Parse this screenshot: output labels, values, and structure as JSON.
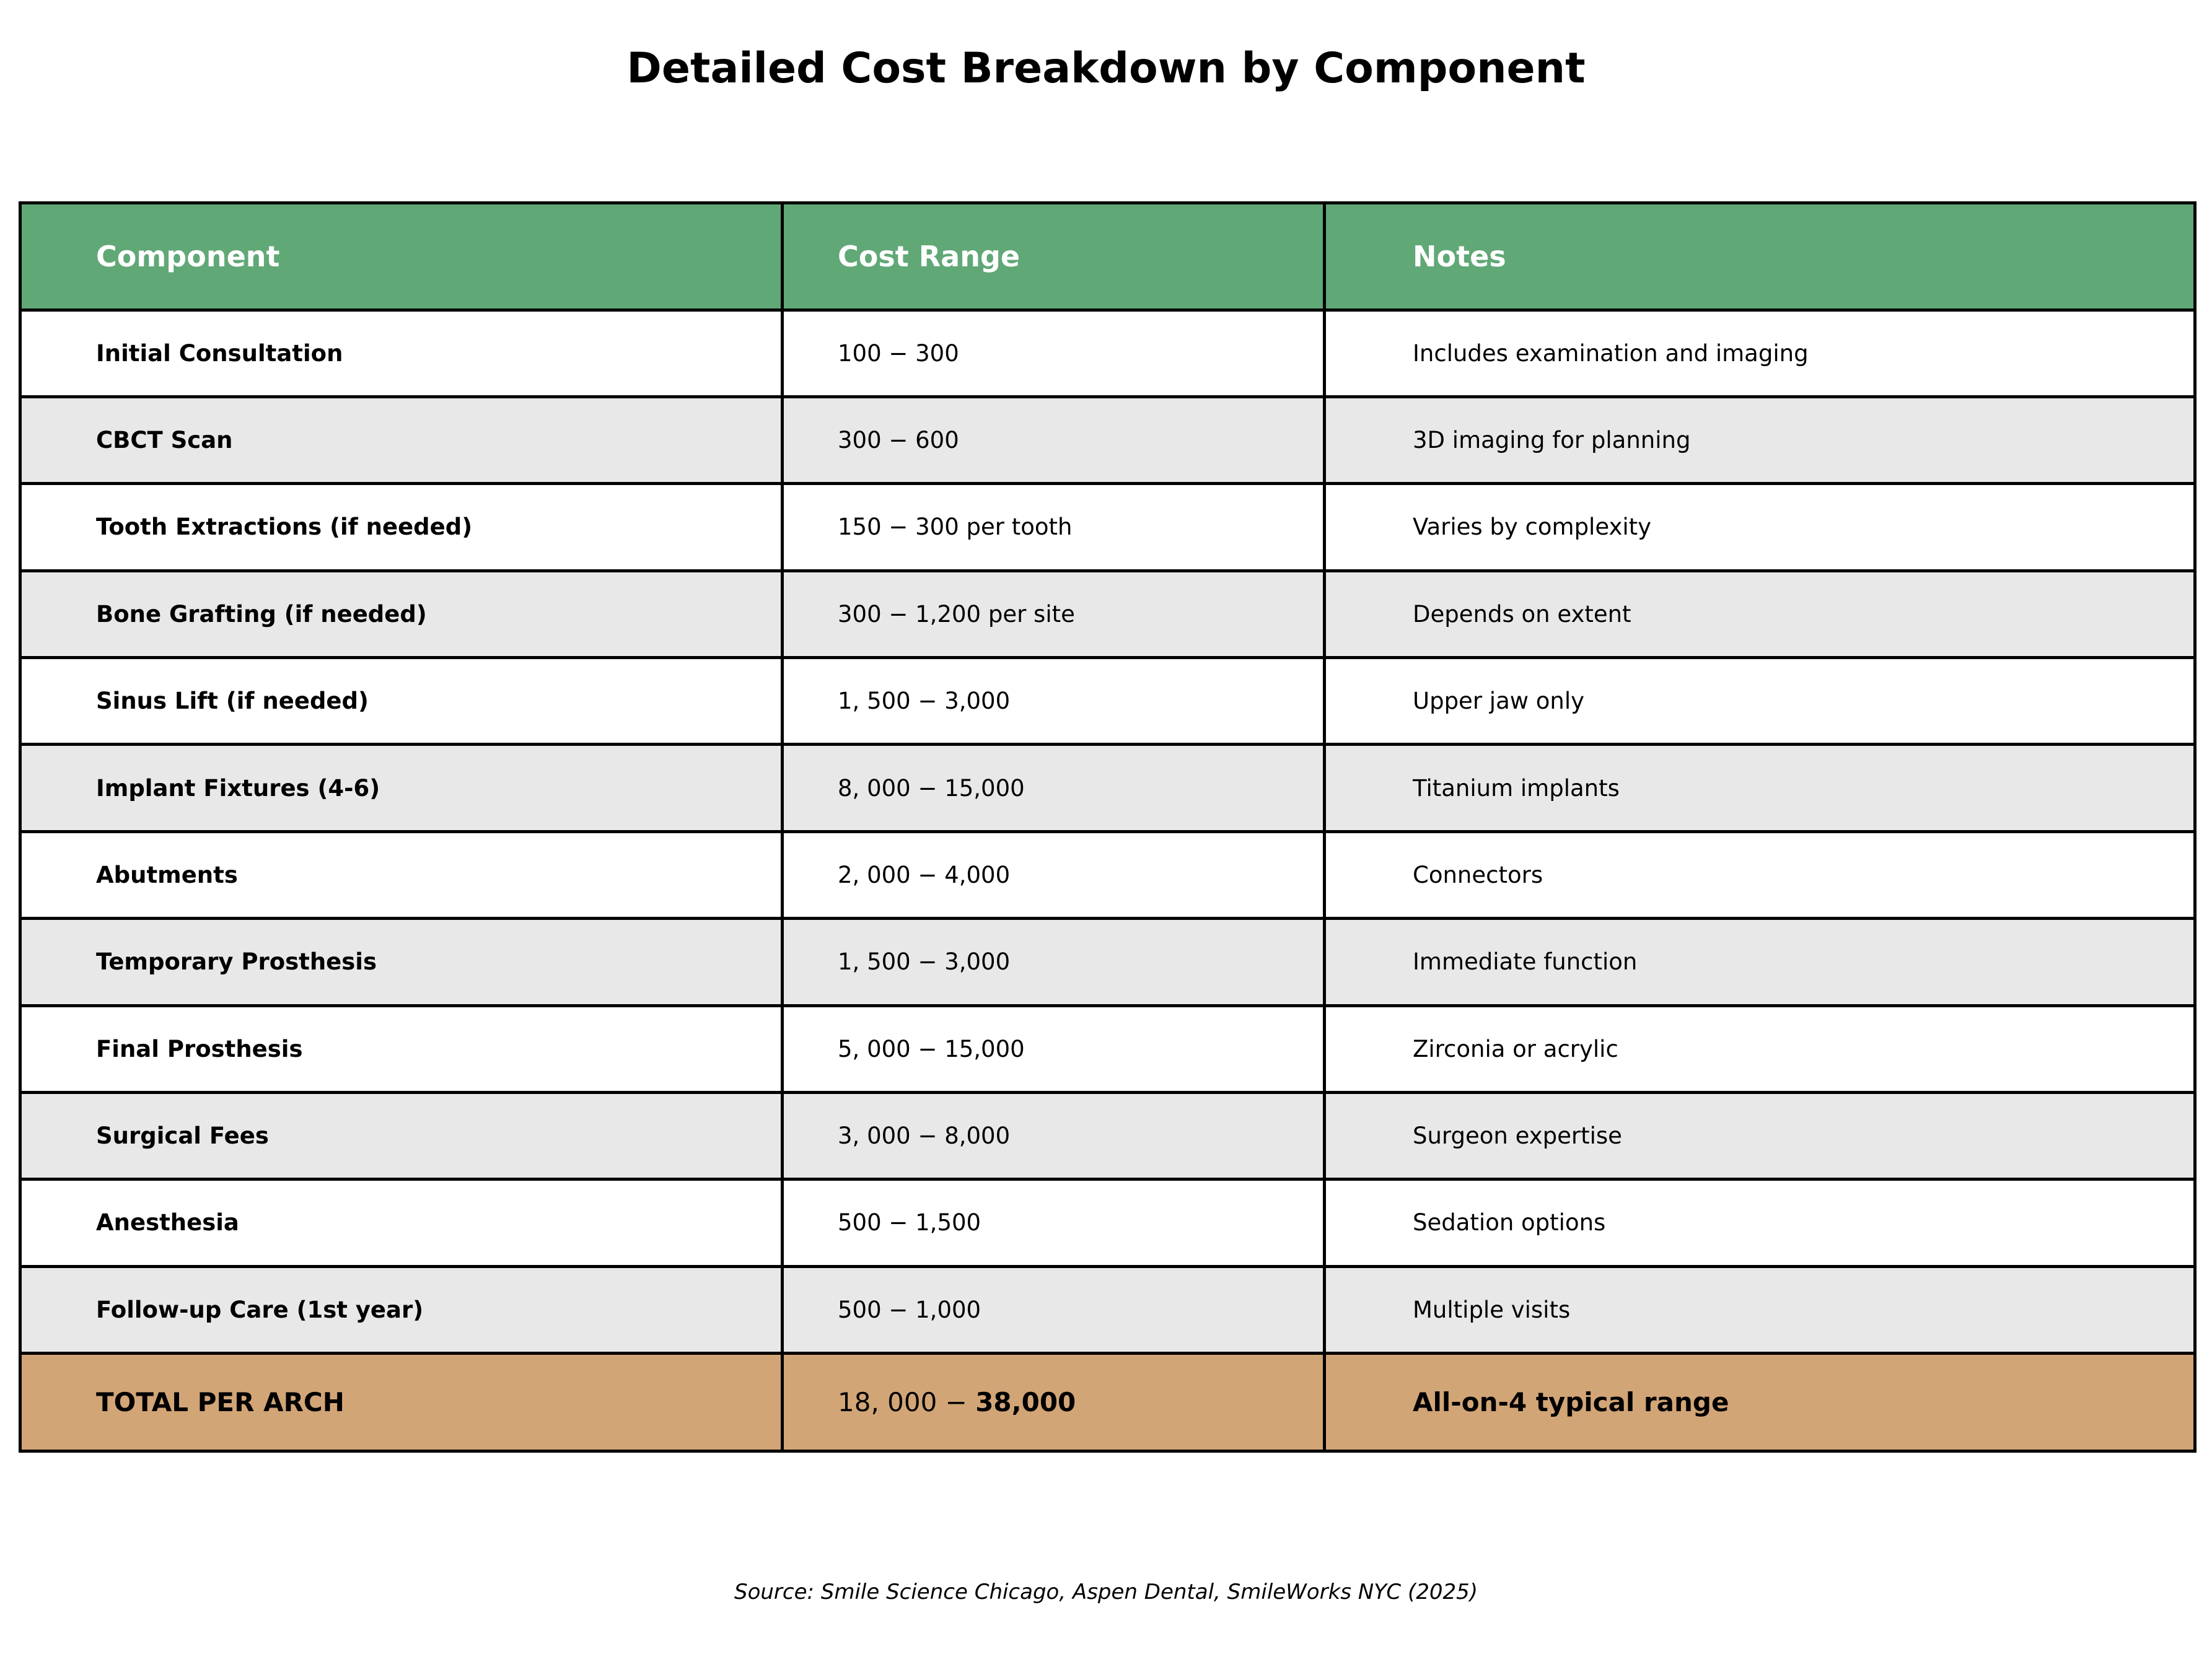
{
  "chart_data": {
    "type": "table",
    "title": "Detailed Cost Breakdown by Component",
    "columns": [
      "Component",
      "Cost Range",
      "Notes"
    ],
    "rows": [
      {
        "component": "Initial Consultation",
        "cost_range": "100 − 300",
        "notes": "Includes examination and imaging"
      },
      {
        "component": "CBCT Scan",
        "cost_range": "300 − 600",
        "notes": "3D imaging for planning"
      },
      {
        "component": "Tooth Extractions (if needed)",
        "cost_range": "150 − 300 per tooth",
        "notes": "Varies by complexity"
      },
      {
        "component": "Bone Grafting (if needed)",
        "cost_range": "300 − 1,200 per site",
        "notes": "Depends on extent"
      },
      {
        "component": "Sinus Lift (if needed)",
        "cost_range": "1, 500 − 3,000",
        "notes": "Upper jaw only"
      },
      {
        "component": "Implant Fixtures (4-6)",
        "cost_range": "8, 000 − 15,000",
        "notes": "Titanium implants"
      },
      {
        "component": "Abutments",
        "cost_range": "2, 000 − 4,000",
        "notes": "Connectors"
      },
      {
        "component": "Temporary Prosthesis",
        "cost_range": "1, 500 − 3,000",
        "notes": "Immediate function"
      },
      {
        "component": "Final Prosthesis",
        "cost_range": "5, 000 − 15,000",
        "notes": "Zirconia or acrylic"
      },
      {
        "component": "Surgical Fees",
        "cost_range": "3, 000 − 8,000",
        "notes": "Surgeon expertise"
      },
      {
        "component": "Anesthesia",
        "cost_range": "500 − 1,500",
        "notes": "Sedation options"
      },
      {
        "component": "Follow-up Care (1st year)",
        "cost_range": "500 − 1,000",
        "notes": "Multiple visits"
      }
    ],
    "total": {
      "component": "TOTAL PER ARCH",
      "cost_range_start": "18, 000 − ",
      "cost_range_end": "38,000",
      "notes": "All-on-4 typical range"
    },
    "source": "Source: Smile Science Chicago, Aspen Dental, SmileWorks NYC (2025)",
    "colors": {
      "header": "#61a877",
      "row_alternate": "#e8e8e8",
      "total": "#d2a577"
    }
  }
}
